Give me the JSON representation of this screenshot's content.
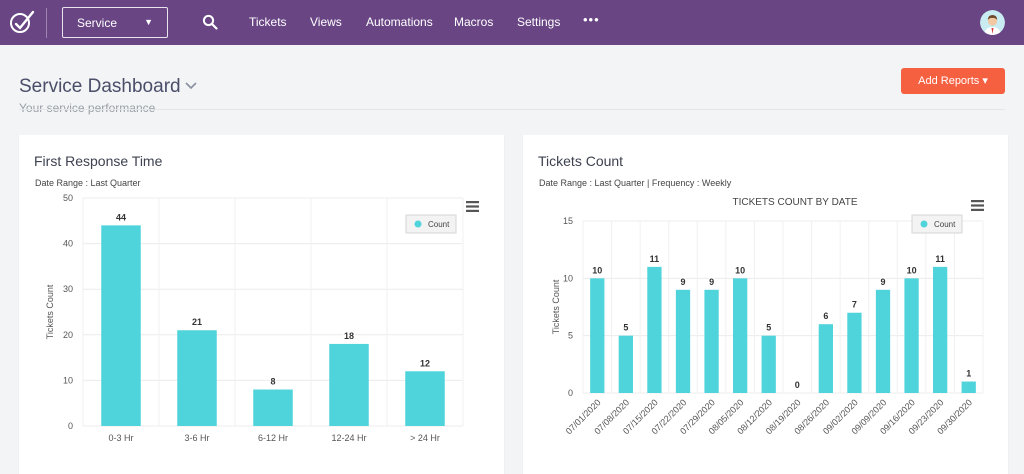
{
  "nav": {
    "service_label": "Service",
    "items": [
      "Tickets",
      "Views",
      "Automations",
      "Macros",
      "Settings"
    ],
    "more_label": "•••"
  },
  "header": {
    "title": "Service Dashboard",
    "subtitle": "Your service performance",
    "add_reports_label": "Add Reports ▾"
  },
  "colors": {
    "topbar": "#694584",
    "accent": "#f56040",
    "bar": "#50d4db"
  },
  "cards": [
    {
      "title": "First Response Time",
      "meta": "Date Range : Last Quarter"
    },
    {
      "title": "Tickets Count",
      "meta": "Date Range : Last Quarter | Frequency : Weekly"
    }
  ],
  "chart_data": [
    {
      "type": "bar",
      "title": "",
      "xlabel": "",
      "ylabel": "Tickets Count",
      "ylim": [
        0,
        50
      ],
      "yticks": [
        0,
        10,
        20,
        30,
        40,
        50
      ],
      "categories": [
        "0-3 Hr",
        "3-6 Hr",
        "6-12 Hr",
        "12-24 Hr",
        "> 24 Hr"
      ],
      "series": [
        {
          "name": "Count",
          "values": [
            44,
            21,
            8,
            18,
            12
          ]
        }
      ],
      "legend": "top-right",
      "grid": true
    },
    {
      "type": "bar",
      "title": "TICKETS COUNT BY DATE",
      "xlabel": "",
      "ylabel": "Tickets Count",
      "ylim": [
        0,
        15
      ],
      "yticks": [
        0,
        5,
        10,
        15
      ],
      "categories": [
        "07/01/2020",
        "07/08/2020",
        "07/15/2020",
        "07/22/2020",
        "07/29/2020",
        "08/05/2020",
        "08/12/2020",
        "08/19/2020",
        "08/26/2020",
        "09/02/2020",
        "09/09/2020",
        "09/16/2020",
        "09/23/2020",
        "09/30/2020"
      ],
      "series": [
        {
          "name": "Count",
          "values": [
            10,
            5,
            11,
            9,
            9,
            10,
            5,
            0,
            6,
            7,
            9,
            10,
            11,
            1
          ]
        }
      ],
      "legend": "top-right",
      "grid": true
    }
  ]
}
